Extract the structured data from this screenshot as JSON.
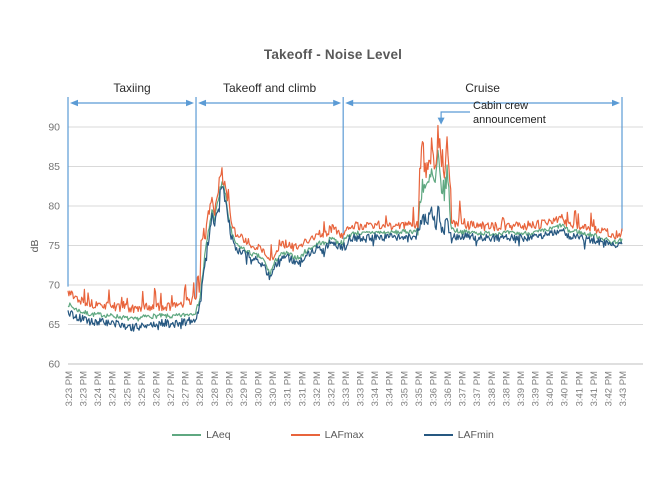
{
  "chart_data": {
    "type": "line",
    "title": "Takeoff - Noise Level",
    "ylabel": "dB",
    "ylim": [
      60,
      90
    ],
    "y_ticks": [
      60,
      65,
      70,
      75,
      80,
      85,
      90
    ],
    "grid": "horizontal",
    "legend_position": "bottom",
    "x_tick_interval_seconds": 32,
    "t_range_seconds": [
      0,
      1216
    ],
    "x_tick_labels": [
      "3:23 PM",
      "3:23 PM",
      "3:24 PM",
      "3:24 PM",
      "3:25 PM",
      "3:25 PM",
      "3:26 PM",
      "3:27 PM",
      "3:27 PM",
      "3:28 PM",
      "3:28 PM",
      "3:29 PM",
      "3:29 PM",
      "3:30 PM",
      "3:30 PM",
      "3:31 PM",
      "3:31 PM",
      "3:32 PM",
      "3:32 PM",
      "3:33 PM",
      "3:33 PM",
      "3:34 PM",
      "3:34 PM",
      "3:35 PM",
      "3:35 PM",
      "3:36 PM",
      "3:36 PM",
      "3:37 PM",
      "3:37 PM",
      "3:38 PM",
      "3:38 PM",
      "3:39 PM",
      "3:39 PM",
      "3:40 PM",
      "3:40 PM",
      "3:41 PM",
      "3:41 PM",
      "3:42 PM",
      "3:43 PM"
    ],
    "phases": [
      {
        "label": "Taxiing",
        "t0": 0,
        "t1": 281
      },
      {
        "label": "Takeoff and climb",
        "t0": 281,
        "t1": 604
      },
      {
        "label": "Cruise",
        "t0": 604,
        "t1": 1216
      }
    ],
    "boundary_lines": [
      {
        "t": 0,
        "end_db": 69.8
      },
      {
        "t": 281,
        "end_db": 68.2
      },
      {
        "t": 604,
        "end_db": 75.8
      },
      {
        "t": 1216,
        "end_db": 76.8
      }
    ],
    "annotation": {
      "text_line1": "Cabin crew",
      "text_line2": "announcement",
      "target_t": 819,
      "target_db": 90.3
    },
    "series": [
      {
        "name": "LAeq",
        "color": "#5FA881",
        "seed": 7,
        "noise": 0.3,
        "noise_windows": [
          [
            290,
            360,
            0.5
          ],
          [
            768,
            840,
            1.4
          ]
        ],
        "keyframes": [
          [
            0,
            67.6
          ],
          [
            15,
            67
          ],
          [
            30,
            66.6
          ],
          [
            50,
            66.3
          ],
          [
            80,
            66.2
          ],
          [
            110,
            66
          ],
          [
            145,
            65.6
          ],
          [
            170,
            66
          ],
          [
            200,
            66.1
          ],
          [
            230,
            66
          ],
          [
            255,
            66.2
          ],
          [
            270,
            66.4
          ],
          [
            281,
            66.6
          ],
          [
            290,
            68.5
          ],
          [
            301,
            74
          ],
          [
            316,
            79.5
          ],
          [
            322,
            78.3
          ],
          [
            330,
            80.8
          ],
          [
            338,
            83.2
          ],
          [
            344,
            81.8
          ],
          [
            352,
            78.8
          ],
          [
            360,
            76.3
          ],
          [
            371,
            75
          ],
          [
            385,
            74.6
          ],
          [
            400,
            74
          ],
          [
            420,
            73.6
          ],
          [
            430,
            73.1
          ],
          [
            443,
            71.4
          ],
          [
            455,
            73
          ],
          [
            465,
            73.8
          ],
          [
            480,
            74
          ],
          [
            495,
            73.6
          ],
          [
            509,
            73.4
          ],
          [
            520,
            74.2
          ],
          [
            531,
            74.6
          ],
          [
            545,
            75.1
          ],
          [
            553,
            75.4
          ],
          [
            565,
            75.2
          ],
          [
            575,
            75.8
          ],
          [
            582,
            76.1
          ],
          [
            590,
            75.4
          ],
          [
            604,
            75.4
          ],
          [
            615,
            76.3
          ],
          [
            630,
            76.6
          ],
          [
            650,
            76.5
          ],
          [
            670,
            76.7
          ],
          [
            700,
            76.6
          ],
          [
            730,
            76.7
          ],
          [
            755,
            76.8
          ],
          [
            768,
            76.9
          ],
          [
            772,
            80
          ],
          [
            778,
            83
          ],
          [
            788,
            82
          ],
          [
            798,
            84
          ],
          [
            806,
            82.5
          ],
          [
            812,
            86
          ],
          [
            818,
            83
          ],
          [
            826,
            81.5
          ],
          [
            832,
            84.5
          ],
          [
            838,
            80
          ],
          [
            842,
            77.2
          ],
          [
            850,
            76.9
          ],
          [
            870,
            76.7
          ],
          [
            900,
            76.6
          ],
          [
            930,
            76.5
          ],
          [
            960,
            76.6
          ],
          [
            990,
            76.5
          ],
          [
            1020,
            76.6
          ],
          [
            1050,
            76.9
          ],
          [
            1070,
            77.3
          ],
          [
            1085,
            77.6
          ],
          [
            1095,
            77
          ],
          [
            1105,
            76.7
          ],
          [
            1113,
            76.9
          ],
          [
            1130,
            76.5
          ],
          [
            1155,
            76.3
          ],
          [
            1175,
            75.9
          ],
          [
            1195,
            75.4
          ],
          [
            1216,
            75.7
          ]
        ]
      },
      {
        "name": "LAFmax",
        "color": "#E8643C",
        "seed": 13,
        "noise": 0.55,
        "max_clip": 90.2,
        "noise_windows": [
          [
            290,
            360,
            1.1
          ],
          [
            768,
            840,
            1.9
          ]
        ],
        "random_spikes": {
          "prob": 0.035,
          "min": 0.6,
          "max": 2.0,
          "dir": 1
        },
        "spikes": [
          [
            45,
            1.2
          ],
          [
            90,
            1.6
          ],
          [
            122,
            1.2
          ],
          [
            191,
            3.3
          ],
          [
            228,
            1.6
          ],
          [
            257,
            3.6
          ],
          [
            276,
            2.6
          ],
          [
            285,
            3.5
          ],
          [
            293,
            5.5
          ],
          [
            297,
            4.5
          ],
          [
            812,
            1
          ],
          [
            860,
            3
          ],
          [
            955,
            2.2
          ],
          [
            1113,
            2.6
          ]
        ],
        "keyframes": [
          [
            0,
            69.2
          ],
          [
            15,
            68.5
          ],
          [
            30,
            68
          ],
          [
            50,
            67.6
          ],
          [
            80,
            67.4
          ],
          [
            110,
            67.2
          ],
          [
            145,
            66.9
          ],
          [
            170,
            67.2
          ],
          [
            200,
            67.3
          ],
          [
            230,
            67.2
          ],
          [
            255,
            67.5
          ],
          [
            270,
            67.8
          ],
          [
            281,
            68
          ],
          [
            290,
            70
          ],
          [
            301,
            76
          ],
          [
            316,
            81
          ],
          [
            322,
            79.5
          ],
          [
            330,
            82
          ],
          [
            338,
            84.3
          ],
          [
            344,
            83
          ],
          [
            352,
            80
          ],
          [
            360,
            77.5
          ],
          [
            371,
            76.2
          ],
          [
            385,
            75.8
          ],
          [
            400,
            75.2
          ],
          [
            420,
            74.8
          ],
          [
            430,
            74.3
          ],
          [
            443,
            72.8
          ],
          [
            455,
            74.2
          ],
          [
            465,
            75
          ],
          [
            480,
            75.2
          ],
          [
            495,
            74.8
          ],
          [
            509,
            74.6
          ],
          [
            520,
            75.4
          ],
          [
            531,
            75.8
          ],
          [
            545,
            76.3
          ],
          [
            553,
            76.6
          ],
          [
            565,
            76.4
          ],
          [
            575,
            77
          ],
          [
            582,
            77.4
          ],
          [
            590,
            76.6
          ],
          [
            604,
            76.4
          ],
          [
            615,
            77.2
          ],
          [
            630,
            77.5
          ],
          [
            650,
            77.4
          ],
          [
            670,
            77.6
          ],
          [
            700,
            77.5
          ],
          [
            730,
            77.6
          ],
          [
            755,
            77.7
          ],
          [
            768,
            77.8
          ],
          [
            772,
            84
          ],
          [
            778,
            86.5
          ],
          [
            788,
            85
          ],
          [
            798,
            87.5
          ],
          [
            806,
            85.5
          ],
          [
            812,
            89.3
          ],
          [
            818,
            86
          ],
          [
            826,
            84.5
          ],
          [
            832,
            87.5
          ],
          [
            838,
            84
          ],
          [
            842,
            78.2
          ],
          [
            850,
            77.8
          ],
          [
            870,
            77.6
          ],
          [
            900,
            77.5
          ],
          [
            930,
            77.4
          ],
          [
            960,
            77.5
          ],
          [
            990,
            77.4
          ],
          [
            1020,
            77.5
          ],
          [
            1050,
            77.8
          ],
          [
            1070,
            78.2
          ],
          [
            1085,
            78.5
          ],
          [
            1095,
            77.9
          ],
          [
            1105,
            77.6
          ],
          [
            1113,
            77.8
          ],
          [
            1130,
            77.4
          ],
          [
            1155,
            77.2
          ],
          [
            1175,
            76.8
          ],
          [
            1195,
            76.3
          ],
          [
            1216,
            76.6
          ]
        ]
      },
      {
        "name": "LAFmin",
        "color": "#265881",
        "seed": 5,
        "noise": 0.5,
        "noise_windows": [
          [
            290,
            360,
            0.7
          ],
          [
            768,
            840,
            0.9
          ]
        ],
        "random_spikes": {
          "prob": 0.05,
          "min": 0.3,
          "max": 1.0,
          "dir": -1
        },
        "keyframes": [
          [
            0,
            66.6
          ],
          [
            15,
            66.1
          ],
          [
            30,
            65.7
          ],
          [
            50,
            65.4
          ],
          [
            80,
            65.3
          ],
          [
            110,
            65.1
          ],
          [
            145,
            64.6
          ],
          [
            170,
            65
          ],
          [
            200,
            65.2
          ],
          [
            230,
            65.1
          ],
          [
            255,
            65.3
          ],
          [
            270,
            65.5
          ],
          [
            281,
            65.7
          ],
          [
            290,
            67.5
          ],
          [
            301,
            73
          ],
          [
            316,
            78.8
          ],
          [
            322,
            77.6
          ],
          [
            330,
            80.2
          ],
          [
            338,
            82.8
          ],
          [
            344,
            81.2
          ],
          [
            352,
            78.2
          ],
          [
            360,
            75.8
          ],
          [
            371,
            74.5
          ],
          [
            385,
            74.1
          ],
          [
            400,
            73.5
          ],
          [
            420,
            73.1
          ],
          [
            430,
            72.6
          ],
          [
            443,
            70.8
          ],
          [
            455,
            72.5
          ],
          [
            465,
            73.3
          ],
          [
            480,
            73.5
          ],
          [
            495,
            73.1
          ],
          [
            509,
            72.9
          ],
          [
            520,
            73.7
          ],
          [
            531,
            74.1
          ],
          [
            545,
            74.6
          ],
          [
            553,
            74.9
          ],
          [
            565,
            74.7
          ],
          [
            575,
            75.3
          ],
          [
            582,
            75.6
          ],
          [
            590,
            74.9
          ],
          [
            604,
            74.9
          ],
          [
            615,
            75.7
          ],
          [
            630,
            76
          ],
          [
            650,
            75.9
          ],
          [
            670,
            76.1
          ],
          [
            700,
            76
          ],
          [
            730,
            76.1
          ],
          [
            755,
            76.2
          ],
          [
            768,
            76.3
          ],
          [
            772,
            77.2
          ],
          [
            778,
            78.8
          ],
          [
            788,
            77.8
          ],
          [
            798,
            79
          ],
          [
            806,
            78
          ],
          [
            812,
            79.8
          ],
          [
            818,
            78.2
          ],
          [
            826,
            77.3
          ],
          [
            832,
            78.8
          ],
          [
            838,
            76.8
          ],
          [
            842,
            76.3
          ],
          [
            850,
            76.2
          ],
          [
            870,
            76.1
          ],
          [
            900,
            76
          ],
          [
            930,
            75.9
          ],
          [
            960,
            76
          ],
          [
            990,
            75.9
          ],
          [
            1020,
            76
          ],
          [
            1050,
            76.3
          ],
          [
            1070,
            76.6
          ],
          [
            1085,
            76.9
          ],
          [
            1095,
            76.4
          ],
          [
            1105,
            76.1
          ],
          [
            1113,
            76.3
          ],
          [
            1130,
            75.9
          ],
          [
            1155,
            75.7
          ],
          [
            1175,
            75.3
          ],
          [
            1195,
            74.9
          ],
          [
            1216,
            75.2
          ]
        ]
      }
    ]
  },
  "colors": {
    "bracket_blue": "#5B9BD5",
    "gridline": "#D9D9D9",
    "axis_line": "#BFBFBF",
    "title_text": "#595959",
    "tick_text": "#7F7F7F",
    "legend_text": "#595959",
    "phase_text": "#2B2B2B",
    "annotation_text": "#1F1F1F",
    "background": "#FFFFFF"
  }
}
